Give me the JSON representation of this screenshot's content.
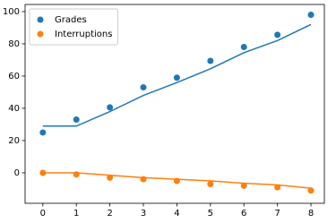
{
  "chart_data": {
    "type": "scatter",
    "x": [
      0,
      1,
      2,
      3,
      4,
      5,
      6,
      7,
      8
    ],
    "series": [
      {
        "name": "Grades",
        "color": "#1f77b4",
        "values": [
          25,
          33,
          40.6,
          53,
          59,
          69.4,
          78,
          85.6,
          98
        ],
        "fit": [
          29,
          29,
          38,
          48,
          56,
          64.5,
          74.5,
          82,
          92
        ]
      },
      {
        "name": "Interruptions",
        "color": "#ff7f0e",
        "values": [
          0,
          -1,
          -3,
          -4,
          -5,
          -7,
          -8,
          -9,
          -11
        ],
        "fit": [
          0,
          0,
          -1.5,
          -3,
          -4,
          -5,
          -6.5,
          -7.5,
          -9.5
        ]
      }
    ],
    "xlim": [
      -0.53,
      8.4
    ],
    "ylim": [
      -18.9,
      104.4
    ],
    "xticks": [
      0,
      1,
      2,
      3,
      4,
      5,
      6,
      7,
      8
    ],
    "yticks": [
      0,
      20,
      40,
      60,
      80,
      100
    ],
    "grid": false,
    "legend": "upper-left"
  }
}
